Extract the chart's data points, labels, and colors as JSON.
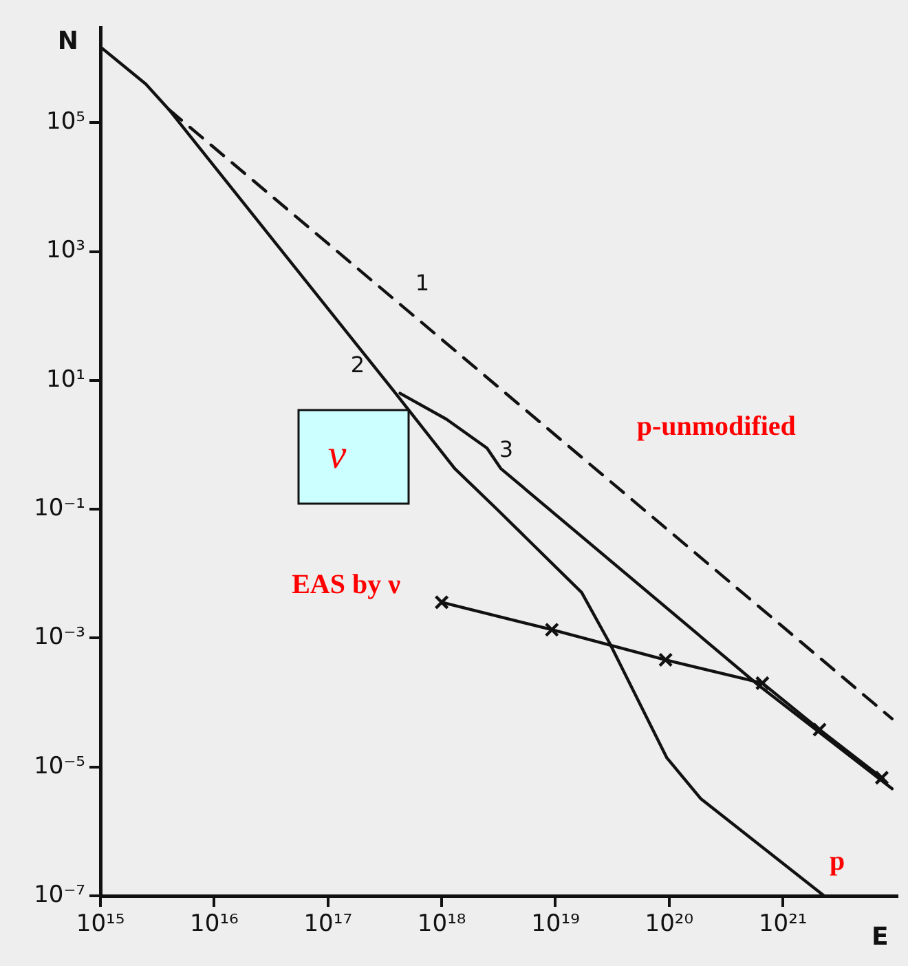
{
  "chart_data": {
    "type": "line",
    "xlabel": "E",
    "ylabel": "N",
    "log": "xy",
    "grid": false,
    "legend": false,
    "xlim": [
      1000000000000000.0,
      1e+22
    ],
    "ylim": [
      1e-07,
      3000000.0
    ],
    "xticks": [
      {
        "value": 1000000000000000.0,
        "label": "10¹⁵"
      },
      {
        "value": 1e+16,
        "label": "10¹⁶"
      },
      {
        "value": 1e+17,
        "label": "10¹⁷"
      },
      {
        "value": 1e+18,
        "label": "10¹⁸"
      },
      {
        "value": 1e+19,
        "label": "10¹⁹"
      },
      {
        "value": 1e+20,
        "label": "10²⁰"
      },
      {
        "value": 1e+21,
        "label": "10²¹"
      }
    ],
    "yticks": [
      {
        "value": 1e-07,
        "label": "10⁻⁷"
      },
      {
        "value": 1e-05,
        "label": "10⁻⁵"
      },
      {
        "value": 0.001,
        "label": "10⁻³"
      },
      {
        "value": 0.1,
        "label": "10⁻¹"
      },
      {
        "value": 10,
        "label": "10¹"
      },
      {
        "value": 1000,
        "label": "10³"
      },
      {
        "value": 100000,
        "label": "10⁵"
      }
    ],
    "series": [
      {
        "name": "p-unmodified",
        "color": "#111111",
        "line_style": "dashed",
        "marker": "none",
        "x": [
          4000000000000000.0,
          9.1e+21
        ],
        "values": [
          160000.0,
          5.6e-05
        ]
      },
      {
        "name": "p",
        "color": "#111111",
        "marker": "none",
        "x": [
          1000000000000000.0,
          2500000000000000.0,
          4000000000000000.0,
          3.7e+17,
          1.3e+18,
          3.1e+18,
          1.7e+19,
          3e+19,
          9.5e+19,
          1.9e+20,
          2.3e+21
        ],
        "values": [
          1500000.0,
          400000.0,
          160000.0,
          7.2,
          0.43,
          0.098,
          0.0051,
          0.00083,
          1.4e-05,
          3.2e-06,
          1e-07
        ]
      },
      {
        "color": "#111111",
        "marker": "none",
        "x": [
          4.3e+17,
          1.1e+18,
          2.5e+18,
          3.3e+18,
          6e+20,
          9.1e+21
        ],
        "values": [
          6.3,
          2.5,
          0.89,
          0.43,
          0.00019,
          4.6e-06
        ]
      },
      {
        "name": "EAS by ν",
        "color": "#111111",
        "marker": "cross",
        "x": [
          1e+18,
          9.3e+18,
          9.3e+19,
          6.6e+20,
          2.1e+21,
          7.4e+21
        ],
        "values": [
          0.0036,
          0.00135,
          0.00046,
          0.0002,
          3.8e-05,
          6.8e-06
        ]
      }
    ],
    "annotations": [
      "ν",
      "1",
      "2",
      "3"
    ]
  }
}
